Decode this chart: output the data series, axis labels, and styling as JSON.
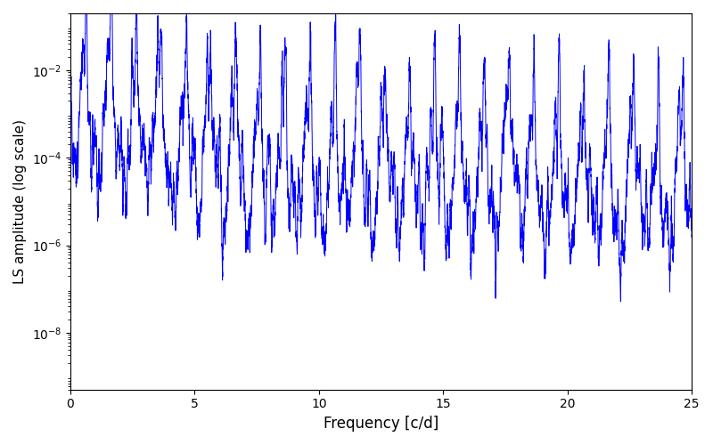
{
  "title": "",
  "xlabel": "Frequency [c/d]",
  "ylabel": "LS amplitude (log scale)",
  "xlim": [
    0,
    25
  ],
  "ylim": [
    5e-10,
    0.2
  ],
  "line_color": "#0000ff",
  "line_width": 0.7,
  "figsize": [
    8.0,
    5.0
  ],
  "dpi": 100,
  "yscale": "log",
  "yticks": [
    1e-08,
    1e-06,
    0.0001,
    0.01
  ],
  "seed": 137,
  "n_points": 8000,
  "freq_max": 25.0
}
